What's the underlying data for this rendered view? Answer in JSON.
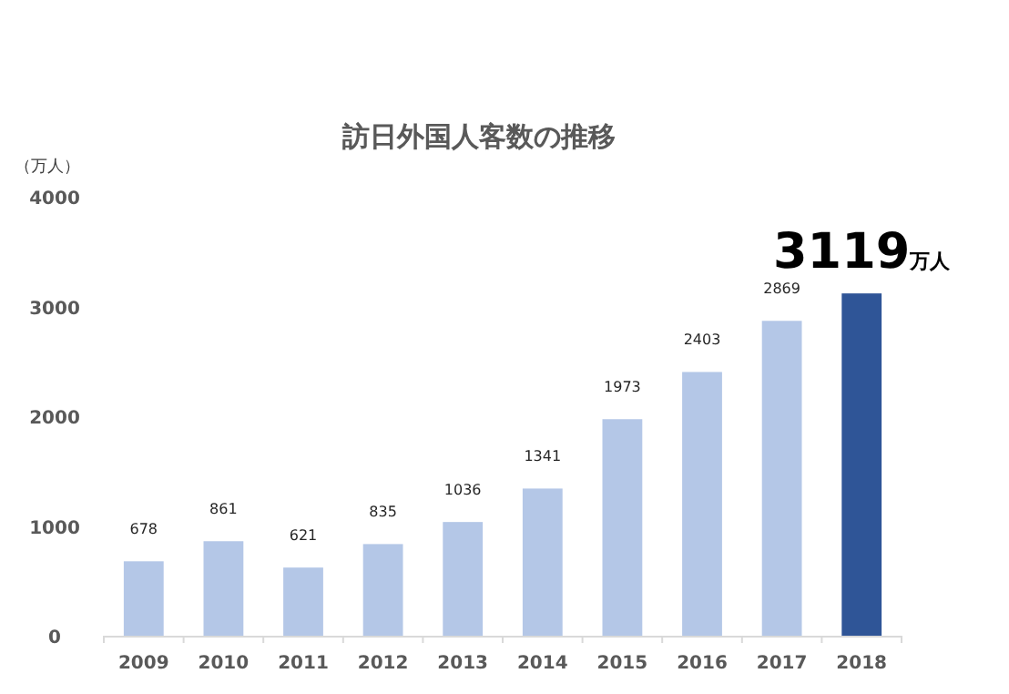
{
  "chart_data": {
    "type": "bar",
    "title": "訪日外国人客数の推移",
    "ylabel": "（万人）",
    "categories": [
      "2009",
      "2010",
      "2011",
      "2012",
      "2013",
      "2014",
      "2015",
      "2016",
      "2017",
      "2018"
    ],
    "values": [
      678,
      861,
      621,
      835,
      1036,
      1341,
      1973,
      2403,
      2869,
      3119
    ],
    "colors": [
      "#b4c7e7",
      "#b4c7e7",
      "#b4c7e7",
      "#b4c7e7",
      "#b4c7e7",
      "#b4c7e7",
      "#b4c7e7",
      "#b4c7e7",
      "#b4c7e7",
      "#2f5597"
    ],
    "value_labels": [
      "678",
      "861",
      "621",
      "835",
      "1036",
      "1341",
      "1973",
      "2403",
      "2869",
      "3119万人"
    ],
    "ylim": [
      0,
      4000
    ],
    "yticks": [
      0,
      1000,
      2000,
      3000,
      4000
    ]
  }
}
